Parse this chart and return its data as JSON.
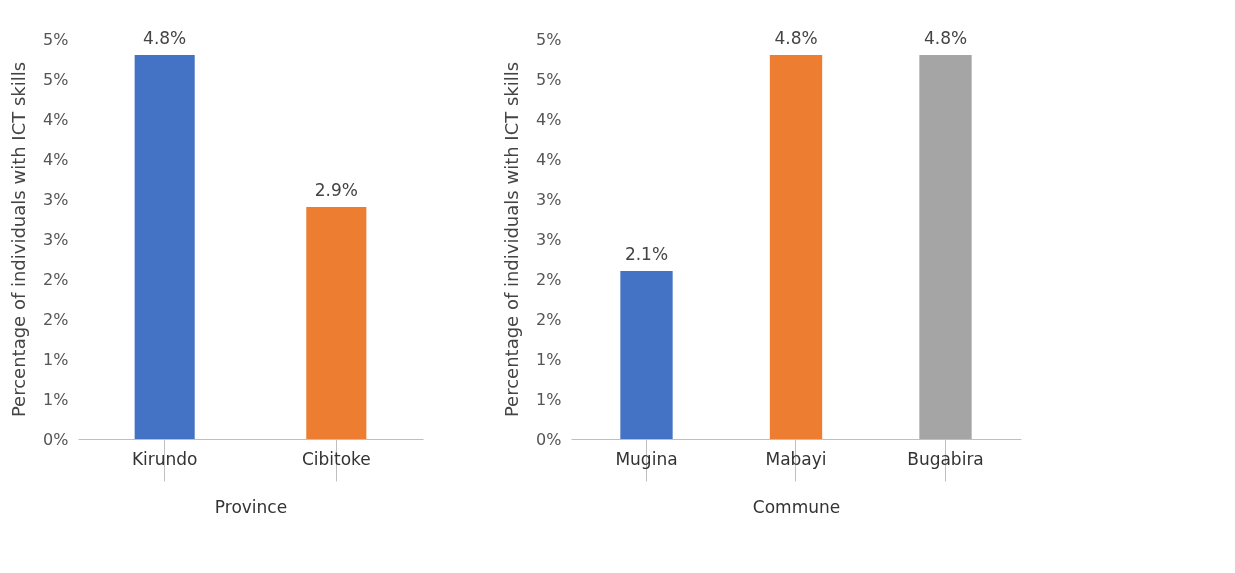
{
  "chart_data": [
    {
      "type": "bar",
      "categories": [
        "Kirundo",
        "Cibitoke"
      ],
      "values": [
        4.8,
        2.9
      ],
      "colors": [
        "#4472c4",
        "#ed7d31"
      ],
      "xlabel": "Province",
      "ylabel": "Percentage of individuals with ICT skills",
      "ylim": [
        0,
        5
      ],
      "yticks": [
        {
          "value": 0,
          "label": "0%"
        },
        {
          "value": 0.5,
          "label": "1%"
        },
        {
          "value": 1,
          "label": "1%"
        },
        {
          "value": 1.5,
          "label": "2%"
        },
        {
          "value": 2,
          "label": "2%"
        },
        {
          "value": 2.5,
          "label": "3%"
        },
        {
          "value": 3,
          "label": "3%"
        },
        {
          "value": 3.5,
          "label": "4%"
        },
        {
          "value": 4,
          "label": "4%"
        },
        {
          "value": 4.5,
          "label": "5%"
        },
        {
          "value": 5,
          "label": "5%"
        }
      ],
      "value_labels": [
        "4.8%",
        "2.9%"
      ],
      "grid": false,
      "legend": false
    },
    {
      "type": "bar",
      "categories": [
        "Mugina",
        "Mabayi",
        "Bugabira"
      ],
      "values": [
        2.1,
        4.8,
        4.8
      ],
      "colors": [
        "#4472c4",
        "#ed7d31",
        "#a5a5a5"
      ],
      "xlabel": "Commune",
      "ylabel": "Percentage of individuals with ICT skills",
      "ylim": [
        0,
        5
      ],
      "yticks": [
        {
          "value": 0,
          "label": "0%"
        },
        {
          "value": 0.5,
          "label": "1%"
        },
        {
          "value": 1,
          "label": "1%"
        },
        {
          "value": 1.5,
          "label": "2%"
        },
        {
          "value": 2,
          "label": "2%"
        },
        {
          "value": 2.5,
          "label": "3%"
        },
        {
          "value": 3,
          "label": "3%"
        },
        {
          "value": 3.5,
          "label": "4%"
        },
        {
          "value": 4,
          "label": "4%"
        },
        {
          "value": 4.5,
          "label": "5%"
        },
        {
          "value": 5,
          "label": "5%"
        }
      ],
      "value_labels": [
        "2.1%",
        "4.8%",
        "4.8%"
      ],
      "grid": false,
      "legend": false
    }
  ]
}
